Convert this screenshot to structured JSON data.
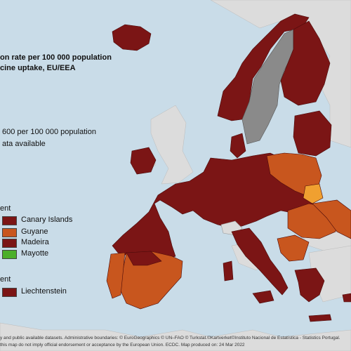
{
  "title_line1": "on rate per 100 000 population",
  "title_line2": "cine uptake, EU/EEA",
  "legend": {
    "item1": "600 per 100 000 population",
    "item2": "ata available"
  },
  "outermost": {
    "header": "ent",
    "items": [
      {
        "label": "Canary Islands",
        "color": "#7b1515"
      },
      {
        "label": "Guyane",
        "color": "#c8561e"
      },
      {
        "label": "Madeira",
        "color": "#7b1515"
      },
      {
        "label": "Mayotte",
        "color": "#4caf2a"
      }
    ]
  },
  "other": {
    "header": "ent",
    "items": [
      {
        "label": "Liechtenstein",
        "color": "#7b1515"
      }
    ]
  },
  "footer": {
    "line1": "y and public available datasets. Administrative boundaries: © EuroGeographics © UN–FAO © Turkstat.©Kartverket©Instituto Nacional de Estatística - Statistics Portugal.",
    "line2": "this map do not imply official endorsement or acceptance by the European Union. ECDC. Map produced on: 24 Mar 2022"
  },
  "colors": {
    "sea": "#c9dce8",
    "non_eu": "#dcdcdc",
    "dark_red": "#7b1515",
    "orange": "#c8561e",
    "light_orange": "#f0a030",
    "grey": "#8a8a8a",
    "green": "#4caf2a"
  }
}
